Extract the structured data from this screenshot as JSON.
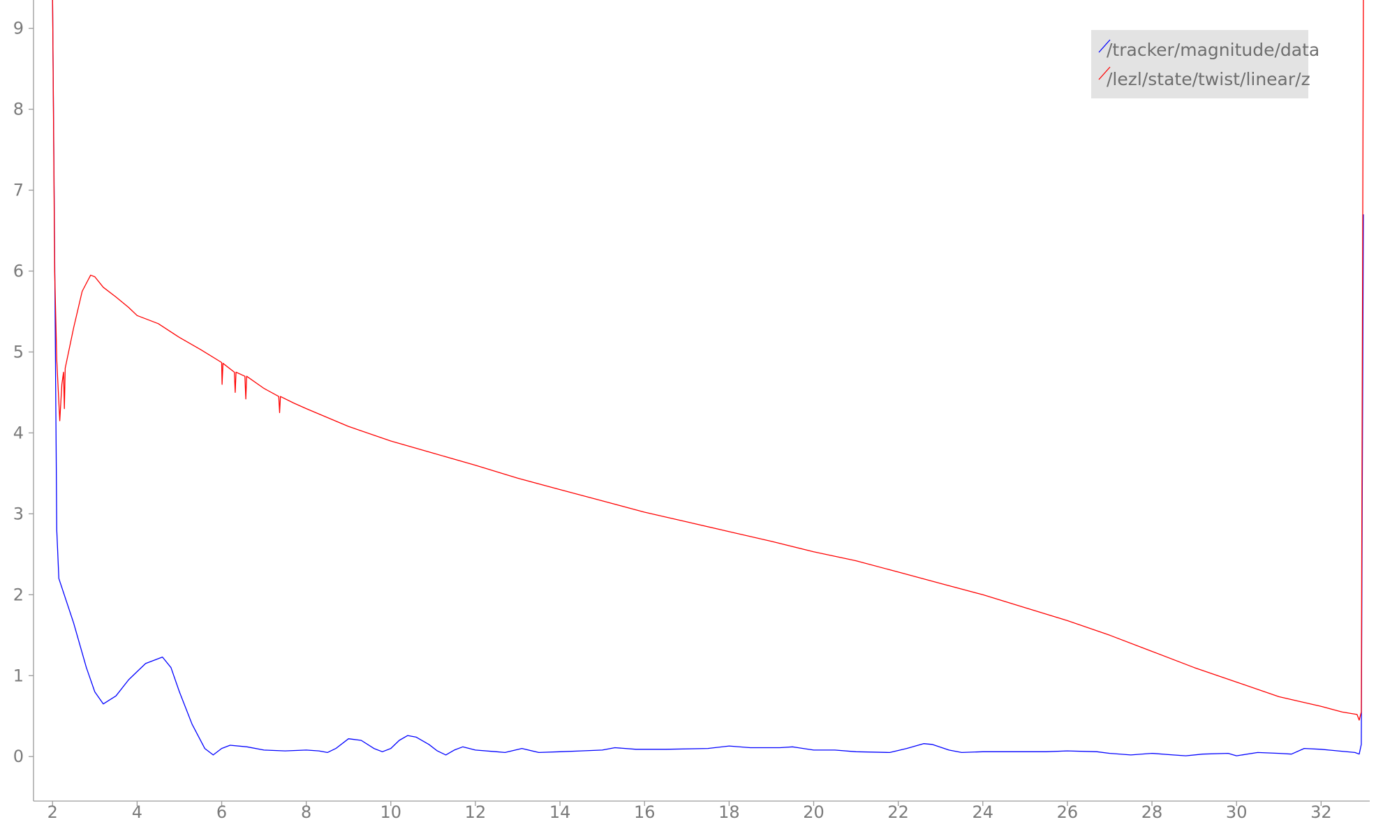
{
  "chart_data": {
    "type": "line",
    "title": "",
    "xlabel": "",
    "ylabel": "",
    "xlim": [
      1.55,
      33.15
    ],
    "ylim": [
      -0.55,
      9.35
    ],
    "x_ticks": [
      2,
      4,
      6,
      8,
      10,
      12,
      14,
      16,
      18,
      20,
      22,
      24,
      26,
      28,
      30,
      32
    ],
    "y_ticks": [
      0,
      1,
      2,
      3,
      4,
      5,
      6,
      7,
      8,
      9
    ],
    "grid": false,
    "legend_position": "top-right",
    "series": [
      {
        "name": "/tracker/magnitude/data",
        "color": "#0000ff",
        "points": [
          [
            2.0,
            9.4
          ],
          [
            2.05,
            6.2
          ],
          [
            2.1,
            2.8
          ],
          [
            2.15,
            2.2
          ],
          [
            2.5,
            1.65
          ],
          [
            2.8,
            1.1
          ],
          [
            3.0,
            0.8
          ],
          [
            3.2,
            0.65
          ],
          [
            3.5,
            0.75
          ],
          [
            3.8,
            0.95
          ],
          [
            4.2,
            1.15
          ],
          [
            4.6,
            1.23
          ],
          [
            4.8,
            1.1
          ],
          [
            5.0,
            0.8
          ],
          [
            5.3,
            0.4
          ],
          [
            5.6,
            0.1
          ],
          [
            5.8,
            0.02
          ],
          [
            6.0,
            0.1
          ],
          [
            6.2,
            0.14
          ],
          [
            6.6,
            0.12
          ],
          [
            7.0,
            0.08
          ],
          [
            7.5,
            0.07
          ],
          [
            8.0,
            0.08
          ],
          [
            8.3,
            0.07
          ],
          [
            8.5,
            0.05
          ],
          [
            8.7,
            0.1
          ],
          [
            9.0,
            0.22
          ],
          [
            9.3,
            0.2
          ],
          [
            9.6,
            0.1
          ],
          [
            9.8,
            0.06
          ],
          [
            10.0,
            0.1
          ],
          [
            10.2,
            0.2
          ],
          [
            10.4,
            0.26
          ],
          [
            10.6,
            0.24
          ],
          [
            10.9,
            0.15
          ],
          [
            11.1,
            0.07
          ],
          [
            11.3,
            0.02
          ],
          [
            11.5,
            0.08
          ],
          [
            11.7,
            0.12
          ],
          [
            12.0,
            0.08
          ],
          [
            12.5,
            0.06
          ],
          [
            12.7,
            0.05
          ],
          [
            13.1,
            0.1
          ],
          [
            13.5,
            0.05
          ],
          [
            14.0,
            0.06
          ],
          [
            14.5,
            0.07
          ],
          [
            15.0,
            0.08
          ],
          [
            15.3,
            0.11
          ],
          [
            15.8,
            0.09
          ],
          [
            16.5,
            0.09
          ],
          [
            17.5,
            0.1
          ],
          [
            18.0,
            0.13
          ],
          [
            18.5,
            0.11
          ],
          [
            19.2,
            0.11
          ],
          [
            19.5,
            0.12
          ],
          [
            20.0,
            0.08
          ],
          [
            20.5,
            0.08
          ],
          [
            21.0,
            0.06
          ],
          [
            21.8,
            0.05
          ],
          [
            22.2,
            0.1
          ],
          [
            22.6,
            0.16
          ],
          [
            22.8,
            0.15
          ],
          [
            23.2,
            0.08
          ],
          [
            23.5,
            0.05
          ],
          [
            24.0,
            0.06
          ],
          [
            24.5,
            0.06
          ],
          [
            25.0,
            0.06
          ],
          [
            25.5,
            0.06
          ],
          [
            26.0,
            0.07
          ],
          [
            26.7,
            0.06
          ],
          [
            27.0,
            0.04
          ],
          [
            27.5,
            0.02
          ],
          [
            28.0,
            0.04
          ],
          [
            28.5,
            0.02
          ],
          [
            28.8,
            0.01
          ],
          [
            29.2,
            0.03
          ],
          [
            29.8,
            0.04
          ],
          [
            30.0,
            0.01
          ],
          [
            30.5,
            0.05
          ],
          [
            31.0,
            0.04
          ],
          [
            31.3,
            0.03
          ],
          [
            31.6,
            0.1
          ],
          [
            32.0,
            0.09
          ],
          [
            32.4,
            0.07
          ],
          [
            32.8,
            0.05
          ],
          [
            32.9,
            0.03
          ],
          [
            32.95,
            0.15
          ],
          [
            33.0,
            6.7
          ]
        ]
      },
      {
        "name": "/lezl/state/twist/linear/z",
        "color": "#ff0000",
        "points": [
          [
            2.0,
            9.4
          ],
          [
            2.05,
            6.0
          ],
          [
            2.1,
            4.9
          ],
          [
            2.17,
            4.15
          ],
          [
            2.22,
            4.6
          ],
          [
            2.26,
            4.75
          ],
          [
            2.28,
            4.3
          ],
          [
            2.3,
            4.8
          ],
          [
            2.5,
            5.3
          ],
          [
            2.7,
            5.75
          ],
          [
            2.9,
            5.95
          ],
          [
            3.0,
            5.93
          ],
          [
            3.2,
            5.8
          ],
          [
            3.5,
            5.68
          ],
          [
            3.8,
            5.55
          ],
          [
            4.0,
            5.45
          ],
          [
            4.5,
            5.35
          ],
          [
            5.0,
            5.18
          ],
          [
            5.5,
            5.03
          ],
          [
            6.0,
            4.87
          ],
          [
            6.01,
            4.6
          ],
          [
            6.03,
            4.86
          ],
          [
            6.3,
            4.75
          ],
          [
            6.32,
            4.5
          ],
          [
            6.34,
            4.75
          ],
          [
            6.55,
            4.7
          ],
          [
            6.57,
            4.42
          ],
          [
            6.59,
            4.7
          ],
          [
            7.0,
            4.55
          ],
          [
            7.35,
            4.45
          ],
          [
            7.37,
            4.25
          ],
          [
            7.39,
            4.45
          ],
          [
            7.7,
            4.37
          ],
          [
            8.0,
            4.3
          ],
          [
            9.0,
            4.08
          ],
          [
            10.0,
            3.9
          ],
          [
            11.0,
            3.75
          ],
          [
            12.0,
            3.6
          ],
          [
            13.0,
            3.44
          ],
          [
            14.0,
            3.3
          ],
          [
            15.0,
            3.16
          ],
          [
            16.0,
            3.02
          ],
          [
            17.0,
            2.9
          ],
          [
            18.0,
            2.78
          ],
          [
            19.0,
            2.66
          ],
          [
            20.0,
            2.53
          ],
          [
            21.0,
            2.42
          ],
          [
            22.0,
            2.28
          ],
          [
            23.0,
            2.14
          ],
          [
            24.0,
            2.0
          ],
          [
            25.0,
            1.84
          ],
          [
            26.0,
            1.68
          ],
          [
            27.0,
            1.5
          ],
          [
            28.0,
            1.3
          ],
          [
            29.0,
            1.1
          ],
          [
            30.0,
            0.92
          ],
          [
            31.0,
            0.74
          ],
          [
            31.5,
            0.68
          ],
          [
            32.0,
            0.62
          ],
          [
            32.5,
            0.55
          ],
          [
            32.85,
            0.52
          ],
          [
            32.9,
            0.45
          ],
          [
            32.95,
            0.55
          ],
          [
            33.0,
            9.4
          ]
        ]
      }
    ]
  }
}
